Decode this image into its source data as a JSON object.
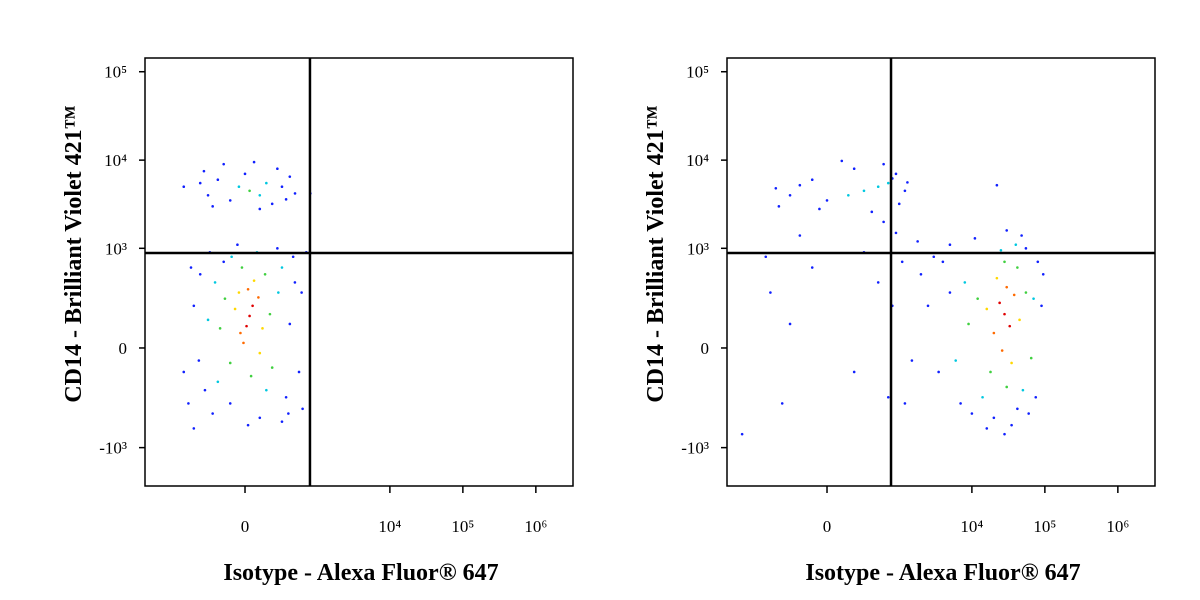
{
  "chart_data": [
    {
      "type": "scatter",
      "xlabel": "Isotype - Alexa Fluor® 647",
      "ylabel": "CD14 - Brilliant Violet 421™",
      "xscale": "biexponential",
      "x_linear_width": 207,
      "yscale": "biexponential",
      "y_linear_width": 150,
      "xlim": [
        -2424,
        3229000
      ],
      "ylim": [
        -2730,
        143000
      ],
      "xticks": [
        0,
        {
          "value": 10000,
          "label": "10⁴"
        },
        {
          "value": 100000,
          "label": "10⁵"
        },
        {
          "value": 1000000,
          "label": "10⁶"
        }
      ],
      "yticks": [
        {
          "value": 100000,
          "label": "10⁵"
        },
        {
          "value": 10000,
          "label": "10⁴"
        },
        {
          "value": 1000,
          "label": "10³"
        },
        0,
        {
          "value": -1000,
          "label": "-10³"
        }
      ],
      "gates": {
        "x": 790,
        "y": 884
      },
      "x": [
        30,
        50,
        10,
        -30,
        90,
        20,
        -10,
        -66,
        120,
        60,
        -40,
        100,
        -140,
        180,
        -100,
        140,
        -20,
        200,
        -180,
        40,
        -226,
        260,
        -200,
        300,
        -90,
        150,
        -300,
        80,
        -400,
        -500,
        -337,
        -600,
        400,
        478,
        350,
        -250,
        100,
        -150,
        250,
        -50,
        550,
        600,
        -420,
        20,
        -550,
        300,
        -700,
        450,
        -100,
        620,
        -280,
        380,
        30,
        -40,
        100,
        150,
        -300,
        -200,
        -100,
        0,
        200,
        300,
        400,
        -400,
        250,
        -150,
        100,
        -250,
        480,
        60,
        -350,
        350,
        700,
        -700,
        800,
        -500
      ],
      "y": [
        140,
        200,
        90,
        60,
        260,
        330,
        20,
        180,
        80,
        420,
        300,
        -20,
        250,
        150,
        -60,
        500,
        600,
        -80,
        80,
        -120,
        400,
        300,
        -150,
        600,
        800,
        -200,
        120,
        900,
        500,
        200,
        -200,
        -300,
        100,
        400,
        -250,
        -400,
        -450,
        700,
        1000,
        1100,
        -100,
        300,
        -50,
        -550,
        600,
        -500,
        -100,
        800,
        -300,
        -350,
        900,
        -400,
        4500,
        5000,
        4000,
        5500,
        4000,
        6000,
        3500,
        7000,
        3200,
        5000,
        6500,
        5500,
        8000,
        9000,
        2800,
        3000,
        4200,
        9500,
        7500,
        3600,
        900,
        5000,
        4200,
        -600
      ],
      "colors": [
        "#e00000",
        "#e00000",
        "#e00000",
        "#ff6a00",
        "#ff6a00",
        "#ff6a00",
        "#ff6a00",
        "#ffd800",
        "#ffd800",
        "#ffd800",
        "#ffd800",
        "#ffd800",
        "#40d040",
        "#40d040",
        "#40d040",
        "#40d040",
        "#40d040",
        "#40d040",
        "#40d040",
        "#40d040",
        "#00c8e0",
        "#00c8e0",
        "#00c8e0",
        "#00c8e0",
        "#00c8e0",
        "#00c8e0",
        "#00c8e0",
        "#00c8e0",
        "#1020ff",
        "#1020ff",
        "#1020ff",
        "#1020ff",
        "#1020ff",
        "#1020ff",
        "#1020ff",
        "#1020ff",
        "#1020ff",
        "#1020ff",
        "#1020ff",
        "#1020ff",
        "#1020ff",
        "#1020ff",
        "#1020ff",
        "#1020ff",
        "#1020ff",
        "#1020ff",
        "#1020ff",
        "#1020ff",
        "#1020ff",
        "#1020ff",
        "#1020ff",
        "#1020ff",
        "#40d040",
        "#00c8e0",
        "#00c8e0",
        "#00c8e0",
        "#1020ff",
        "#1020ff",
        "#1020ff",
        "#1020ff",
        "#1020ff",
        "#1020ff",
        "#1020ff",
        "#1020ff",
        "#1020ff",
        "#1020ff",
        "#1020ff",
        "#1020ff",
        "#1020ff",
        "#1020ff",
        "#1020ff",
        "#1020ff",
        "#1020ff",
        "#1020ff",
        "#1020ff",
        "#1020ff"
      ]
    },
    {
      "type": "scatter",
      "xlabel": "Isotype - Alexa Fluor® 647",
      "ylabel": "CD14 - Brilliant Violet 421™",
      "xscale": "biexponential",
      "x_linear_width": 207,
      "yscale": "biexponential",
      "y_linear_width": 150,
      "xlim": [
        -2424,
        3229000
      ],
      "ylim": [
        -2730,
        143000
      ],
      "xticks": [
        0,
        {
          "value": 10000,
          "label": "10⁴"
        },
        {
          "value": 100000,
          "label": "10⁵"
        },
        {
          "value": 1000000,
          "label": "10⁶"
        }
      ],
      "yticks": [
        {
          "value": 100000,
          "label": "10⁵"
        },
        {
          "value": 10000,
          "label": "10⁴"
        },
        {
          "value": 1000,
          "label": "10³"
        },
        0,
        {
          "value": -1000,
          "label": "-10³"
        }
      ],
      "gates": {
        "x": 766,
        "y": 884
      },
      "x": [
        300,
        500,
        150,
        700,
        -300,
        -100,
        0,
        900,
        1200,
        -450,
        200,
        600,
        1000,
        -200,
        400,
        800,
        -500,
        100,
        1300,
        -50,
        -600,
        -300,
        -100,
        200,
        500,
        800,
        1100,
        1500,
        2000,
        -400,
        300,
        700,
        1800,
        2500,
        -200,
        900,
        1200,
        3000,
        -700,
        600,
        28000,
        24000,
        33000,
        20000,
        38000,
        30000,
        26000,
        16000,
        45000,
        22000,
        35000,
        12000,
        55000,
        18000,
        42000,
        28000,
        9000,
        65000,
        30000,
        8000,
        70000,
        14000,
        50000,
        25000,
        40000,
        6000,
        5000,
        4000,
        7000,
        90000,
        80000,
        60000,
        20000,
        35000,
        11000,
        48000,
        3500,
        75000,
        16000,
        28000,
        95000,
        55000,
        10000,
        42000,
        30000,
        5000,
        22000,
        -1500
      ],
      "y": [
        4500,
        5000,
        4000,
        5500,
        4000,
        6000,
        3500,
        7000,
        4500,
        3000,
        8000,
        9000,
        3200,
        5200,
        2600,
        6200,
        4800,
        9800,
        5600,
        2800,
        300,
        100,
        600,
        -100,
        400,
        200,
        700,
        -50,
        500,
        -300,
        900,
        -250,
        1200,
        200,
        1400,
        1500,
        -300,
        800,
        800,
        2000,
        150,
        220,
        90,
        60,
        280,
        350,
        -10,
        180,
        120,
        450,
        -60,
        250,
        300,
        -100,
        600,
        700,
        100,
        -40,
        -180,
        400,
        250,
        -250,
        -200,
        950,
        1100,
        -50,
        300,
        700,
        -300,
        200,
        700,
        -400,
        -450,
        -550,
        1300,
        1400,
        -100,
        -250,
        -600,
        -700,
        500,
        1000,
        -400,
        -350,
        1600,
        1100,
        5200,
        -700
      ],
      "colors": [
        "#00c8e0",
        "#00c8e0",
        "#00c8e0",
        "#00c8e0",
        "#1020ff",
        "#1020ff",
        "#1020ff",
        "#1020ff",
        "#1020ff",
        "#1020ff",
        "#1020ff",
        "#1020ff",
        "#1020ff",
        "#1020ff",
        "#1020ff",
        "#1020ff",
        "#1020ff",
        "#1020ff",
        "#1020ff",
        "#1020ff",
        "#1020ff",
        "#1020ff",
        "#1020ff",
        "#1020ff",
        "#1020ff",
        "#1020ff",
        "#1020ff",
        "#1020ff",
        "#1020ff",
        "#1020ff",
        "#1020ff",
        "#1020ff",
        "#1020ff",
        "#1020ff",
        "#1020ff",
        "#1020ff",
        "#1020ff",
        "#1020ff",
        "#1020ff",
        "#1020ff",
        "#e00000",
        "#e00000",
        "#e00000",
        "#ff6a00",
        "#ff6a00",
        "#ff6a00",
        "#ff6a00",
        "#ffd800",
        "#ffd800",
        "#ffd800",
        "#ffd800",
        "#40d040",
        "#40d040",
        "#40d040",
        "#40d040",
        "#40d040",
        "#40d040",
        "#40d040",
        "#40d040",
        "#00c8e0",
        "#00c8e0",
        "#00c8e0",
        "#00c8e0",
        "#00c8e0",
        "#00c8e0",
        "#00c8e0",
        "#1020ff",
        "#1020ff",
        "#1020ff",
        "#1020ff",
        "#1020ff",
        "#1020ff",
        "#1020ff",
        "#1020ff",
        "#1020ff",
        "#1020ff",
        "#1020ff",
        "#1020ff",
        "#1020ff",
        "#1020ff",
        "#1020ff",
        "#1020ff",
        "#1020ff",
        "#1020ff",
        "#1020ff",
        "#1020ff",
        "#1020ff",
        "#1020ff"
      ]
    }
  ]
}
